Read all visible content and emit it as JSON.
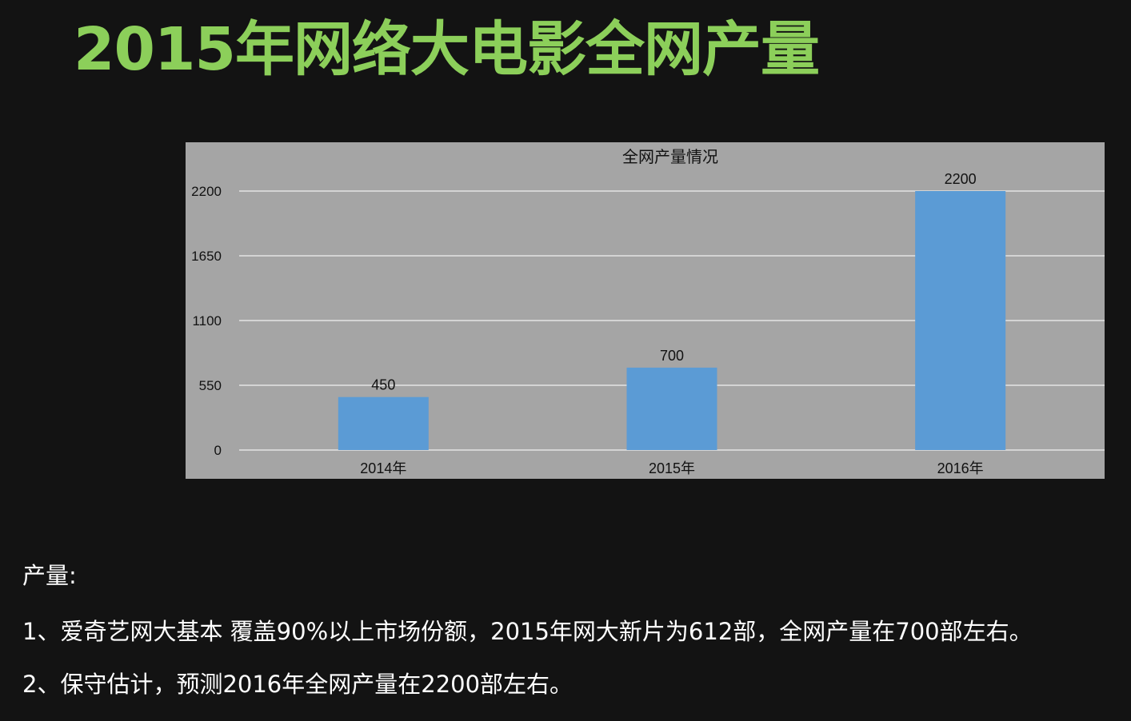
{
  "page": {
    "title": "2015年网络大电影全网产量",
    "title_color": "#8ccf5a",
    "background": "#131313"
  },
  "chart_data": {
    "type": "bar",
    "title": "全网产量情况",
    "categories": [
      "2014年",
      "2015年",
      "2016年"
    ],
    "values": [
      450,
      700,
      2200
    ],
    "data_labels": [
      "450",
      "700",
      "2200"
    ],
    "xlabel": "",
    "ylabel": "",
    "ylim": [
      0,
      2200
    ],
    "yticks": [
      0,
      550,
      1100,
      1650,
      2200
    ],
    "ytick_labels": [
      "0",
      "550",
      "1100",
      "1650",
      "2200"
    ],
    "grid": true,
    "legend": "none",
    "bar_color": "#5b9bd5",
    "background_color": "#a5a5a5",
    "gridline_color": "#f0f0f0"
  },
  "notes": {
    "heading": "产量:",
    "items": [
      "1、爱奇艺网大基本 覆盖90%以上市场份额，2015年网大新片为612部，全网产量在700部左右。",
      "2、保守估计，预测2016年全网产量在2200部左右。"
    ]
  }
}
